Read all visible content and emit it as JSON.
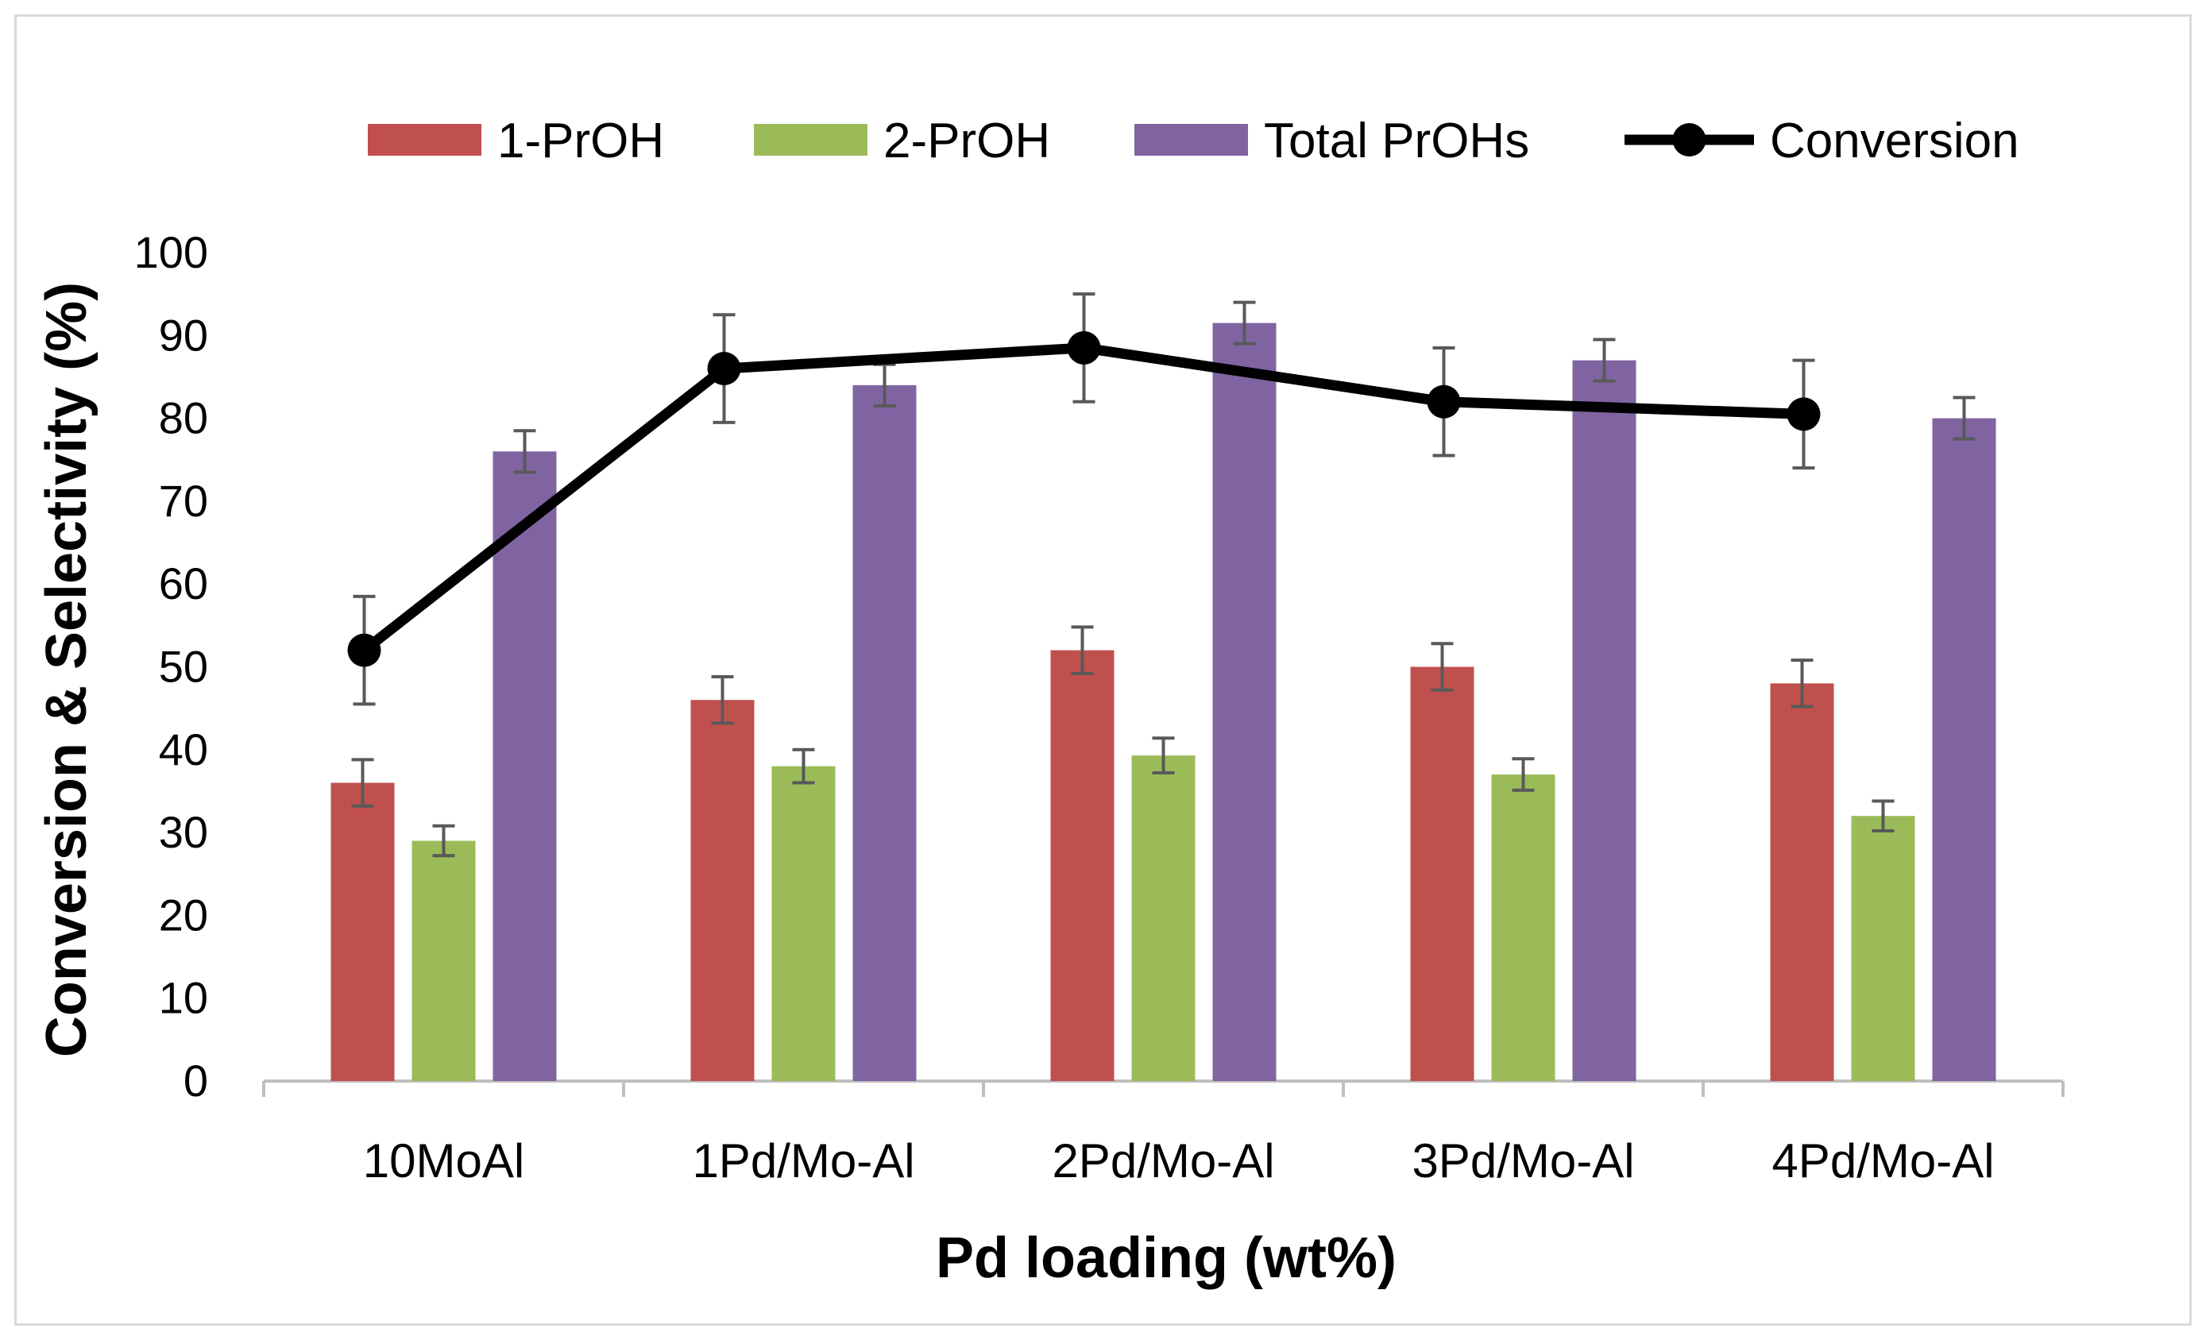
{
  "chart_data": {
    "type": "bar",
    "xlabel": "Pd loading (wt%)",
    "ylabel": "Conversion & Selectivity (%)",
    "ylim": [
      0,
      100
    ],
    "yticks": [
      "0",
      "10",
      "20",
      "30",
      "40",
      "50",
      "60",
      "70",
      "80",
      "90",
      "100"
    ],
    "categories": [
      "10MoAl",
      "1Pd/Mo-Al",
      "2Pd/Mo-Al",
      "3Pd/Mo-Al",
      "4Pd/Mo-Al"
    ],
    "grid": false,
    "legend_position": "top",
    "series": [
      {
        "name": "1-PrOH",
        "kind": "bar",
        "color": "#c0504d",
        "values": [
          36,
          46,
          52,
          50,
          48
        ],
        "errors": [
          2.8,
          2.8,
          2.8,
          2.8,
          2.8
        ]
      },
      {
        "name": "2-PrOH",
        "kind": "bar",
        "color": "#9bbb59",
        "values": [
          29,
          38,
          39.3,
          37,
          32
        ],
        "errors": [
          1.8,
          2.0,
          2.1,
          1.9,
          1.8
        ]
      },
      {
        "name": "Total PrOHs",
        "kind": "bar",
        "color": "#8064a2",
        "values": [
          76,
          84,
          91.5,
          87,
          80
        ],
        "errors": [
          2.5,
          2.5,
          2.5,
          2.5,
          2.5
        ]
      },
      {
        "name": "Conversion",
        "kind": "line",
        "color": "#000000",
        "values": [
          52,
          86,
          88.5,
          82,
          80.5
        ],
        "errors": [
          6.5,
          6.5,
          6.5,
          6.5,
          6.5
        ]
      }
    ]
  }
}
